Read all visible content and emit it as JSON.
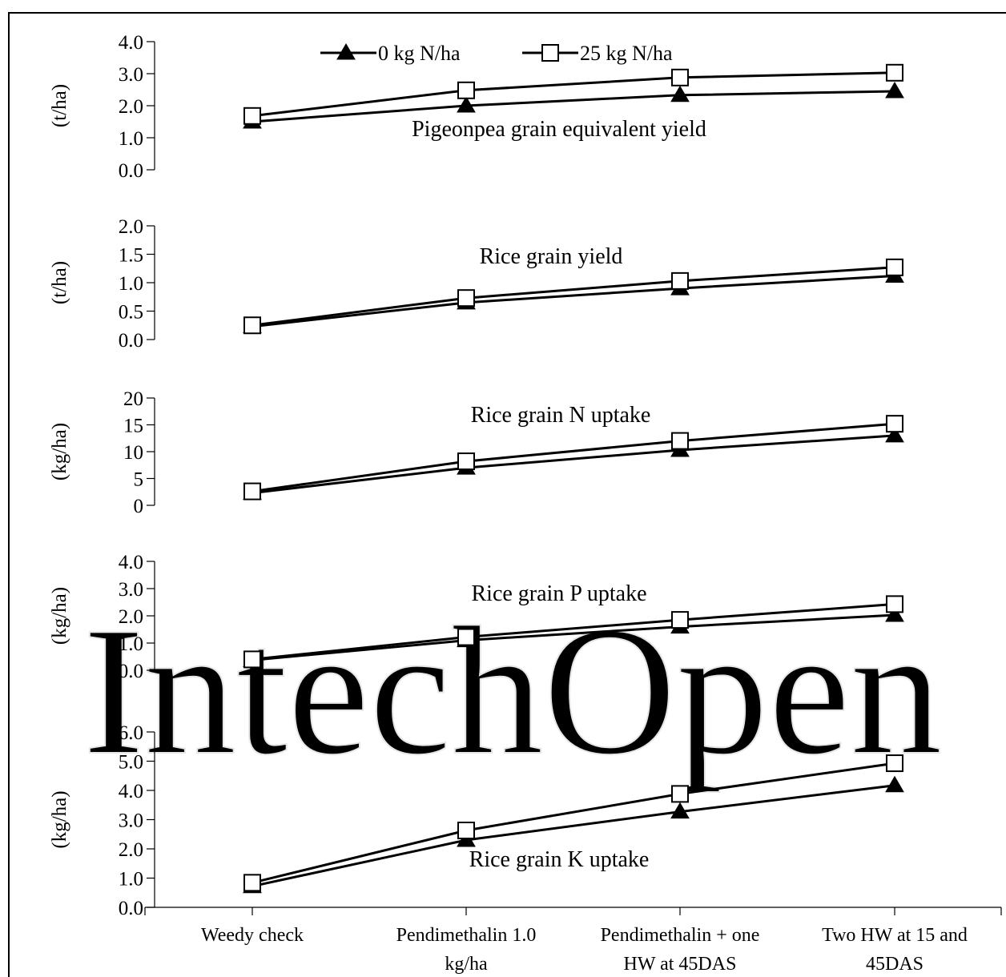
{
  "chart_data": {
    "type": "line",
    "categories": [
      [
        "Weedy check"
      ],
      [
        "Pendimethalin 1.0",
        "kg/ha"
      ],
      [
        "Pendimethalin + one",
        "HW at 45DAS"
      ],
      [
        "Two HW at 15 and",
        "45DAS"
      ]
    ],
    "legend": [
      "0 kg N/ha",
      "25 kg N/ha"
    ],
    "watermark": "IntechOpen",
    "panels": [
      {
        "title": "Pigeonpea grain  equivalent yield",
        "ylabel": "(t/ha)",
        "ylim": [
          0,
          4
        ],
        "yticks": [
          "0.0",
          "1.0",
          "2.0",
          "3.0",
          "4.0"
        ],
        "series": [
          {
            "name": "0 kg N/ha",
            "marker": "triangle",
            "values": [
              1.5,
              2.0,
              2.33,
              2.45
            ]
          },
          {
            "name": "25 kg N/ha",
            "marker": "square",
            "values": [
              1.68,
              2.48,
              2.88,
              3.03
            ]
          }
        ]
      },
      {
        "title": "Rice grain yield",
        "ylabel": "(t/ha)",
        "ylim": [
          0,
          2
        ],
        "yticks": [
          "0.0",
          "0.5",
          "1.0",
          "1.5",
          "2.0"
        ],
        "series": [
          {
            "name": "0 kg N/ha",
            "marker": "triangle",
            "values": [
              0.23,
              0.65,
              0.9,
              1.12
            ]
          },
          {
            "name": "25 kg N/ha",
            "marker": "square",
            "values": [
              0.25,
              0.73,
              1.03,
              1.27
            ]
          }
        ]
      },
      {
        "title": "Rice grain N uptake",
        "ylabel": "(kg/ha)",
        "ylim": [
          0,
          20
        ],
        "yticks": [
          "0",
          "5",
          "10",
          "15",
          "20"
        ],
        "series": [
          {
            "name": "0 kg N/ha",
            "marker": "triangle",
            "values": [
              2.3,
              7.0,
              10.3,
              13.0
            ]
          },
          {
            "name": "25 kg N/ha",
            "marker": "square",
            "values": [
              2.6,
              8.2,
              12.0,
              15.2
            ]
          }
        ]
      },
      {
        "title": "Rice grain P uptake",
        "ylabel": "(kg/ha)",
        "ylim": [
          0,
          4
        ],
        "yticks": [
          "0.0",
          "1.0",
          "2.0",
          "3.0",
          "4.0"
        ],
        "series": [
          {
            "name": "0 kg N/ha",
            "marker": "triangle",
            "values": [
              0.37,
              1.1,
              1.6,
              2.03
            ]
          },
          {
            "name": "25 kg N/ha",
            "marker": "square",
            "values": [
              0.4,
              1.22,
              1.85,
              2.43
            ]
          }
        ]
      },
      {
        "title": "Rice grain K  uptake",
        "ylabel": "(kg/ha)",
        "ylim": [
          0,
          6
        ],
        "yticks": [
          "0.0",
          "1.0",
          "2.0",
          "3.0",
          "4.0",
          "5.0",
          "6.0"
        ],
        "series": [
          {
            "name": "0 kg N/ha",
            "marker": "triangle",
            "values": [
              0.72,
              2.3,
              3.27,
              4.17
            ]
          },
          {
            "name": "25 kg N/ha",
            "marker": "square",
            "values": [
              0.84,
              2.63,
              3.88,
              4.93
            ]
          }
        ]
      }
    ]
  }
}
